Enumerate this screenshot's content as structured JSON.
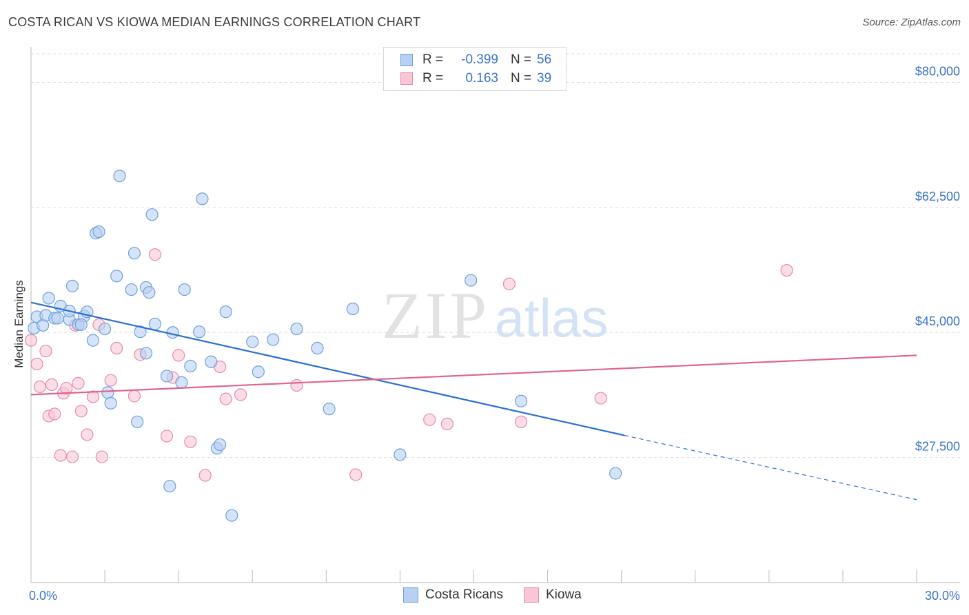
{
  "title": "COSTA RICAN VS KIOWA MEDIAN EARNINGS CORRELATION CHART",
  "source": "Source: ZipAtlas.com",
  "watermark": {
    "zip": "ZIP",
    "atlas": "atlas"
  },
  "legend": {
    "rows": [
      {
        "r_label": "R =",
        "r_value": "-0.399",
        "n_label": "N =",
        "n_value": "56"
      },
      {
        "r_label": "R =",
        "r_value": "0.163",
        "n_label": "N =",
        "n_value": "39"
      }
    ]
  },
  "colors": {
    "blue_fill": "#b8d1f3",
    "blue_stroke": "#6f9fdc",
    "blue_line": "#2a6fd4",
    "pink_fill": "#f9c6d6",
    "pink_stroke": "#e88aa7",
    "pink_line": "#e0648e",
    "axis_label": "#3b73c8",
    "grid": "#dddddd"
  },
  "chart_data": {
    "type": "scatter",
    "title": "COSTA RICAN VS KIOWA MEDIAN EARNINGS CORRELATION CHART",
    "xlabel": "",
    "ylabel": "Median Earnings",
    "xlim": [
      0,
      30
    ],
    "ylim": [
      10000,
      84000
    ],
    "x_tick_labels": [
      "0.0%",
      "30.0%"
    ],
    "y_ticks": [
      27500,
      45000,
      62500,
      80000
    ],
    "y_tick_labels": [
      "$27,500",
      "$45,000",
      "$62,500",
      "$80,000"
    ],
    "grid": true,
    "series": [
      {
        "name": "Costa Ricans",
        "r": -0.399,
        "n": 56,
        "trend": {
          "x0": 0,
          "y0": 49200,
          "x1": 20.1,
          "y1": 30600,
          "dash_x1": 30,
          "dash_y1": 21600
        },
        "points": [
          [
            0.1,
            45600
          ],
          [
            0.2,
            47200
          ],
          [
            0.4,
            46000
          ],
          [
            0.5,
            47400
          ],
          [
            0.6,
            49800
          ],
          [
            0.8,
            47000
          ],
          [
            1.0,
            48700
          ],
          [
            1.3,
            46800
          ],
          [
            1.3,
            48000
          ],
          [
            1.4,
            51500
          ],
          [
            1.6,
            46100
          ],
          [
            1.8,
            47300
          ],
          [
            1.9,
            47900
          ],
          [
            2.1,
            43900
          ],
          [
            2.2,
            58900
          ],
          [
            2.3,
            59100
          ],
          [
            2.5,
            45500
          ],
          [
            2.6,
            36600
          ],
          [
            2.7,
            35100
          ],
          [
            2.9,
            52900
          ],
          [
            3.0,
            66900
          ],
          [
            3.4,
            51000
          ],
          [
            3.5,
            56100
          ],
          [
            3.6,
            32500
          ],
          [
            3.7,
            45100
          ],
          [
            3.9,
            42100
          ],
          [
            3.9,
            51300
          ],
          [
            4.0,
            50600
          ],
          [
            4.1,
            61500
          ],
          [
            4.2,
            46200
          ],
          [
            4.6,
            38900
          ],
          [
            4.7,
            23500
          ],
          [
            4.8,
            45000
          ],
          [
            5.1,
            38000
          ],
          [
            5.2,
            51000
          ],
          [
            5.4,
            40300
          ],
          [
            5.7,
            45100
          ],
          [
            5.8,
            63700
          ],
          [
            6.1,
            40900
          ],
          [
            6.3,
            28800
          ],
          [
            6.4,
            29300
          ],
          [
            6.6,
            47900
          ],
          [
            6.8,
            19400
          ],
          [
            7.5,
            43700
          ],
          [
            7.7,
            39500
          ],
          [
            8.2,
            44000
          ],
          [
            9.0,
            45500
          ],
          [
            9.7,
            42800
          ],
          [
            10.1,
            34300
          ],
          [
            10.9,
            48300
          ],
          [
            12.5,
            27900
          ],
          [
            14.9,
            52300
          ],
          [
            16.6,
            35400
          ],
          [
            19.8,
            25300
          ],
          [
            1.7,
            46100
          ],
          [
            0.9,
            47000
          ]
        ]
      },
      {
        "name": "Kiowa",
        "r": 0.163,
        "n": 39,
        "trend": {
          "x0": 0,
          "y0": 36300,
          "x1": 30,
          "y1": 41800
        },
        "points": [
          [
            0.0,
            43900
          ],
          [
            0.2,
            40600
          ],
          [
            0.3,
            37400
          ],
          [
            0.5,
            42400
          ],
          [
            0.6,
            33300
          ],
          [
            0.7,
            37700
          ],
          [
            0.8,
            33600
          ],
          [
            1.0,
            27800
          ],
          [
            1.1,
            36500
          ],
          [
            1.2,
            37200
          ],
          [
            1.4,
            27600
          ],
          [
            1.5,
            46000
          ],
          [
            1.6,
            37900
          ],
          [
            1.7,
            34000
          ],
          [
            1.9,
            30700
          ],
          [
            2.1,
            36000
          ],
          [
            2.3,
            46100
          ],
          [
            2.4,
            27600
          ],
          [
            2.7,
            38300
          ],
          [
            2.9,
            42800
          ],
          [
            3.5,
            36100
          ],
          [
            3.7,
            41900
          ],
          [
            4.2,
            55900
          ],
          [
            4.6,
            30500
          ],
          [
            4.8,
            38700
          ],
          [
            5.0,
            41800
          ],
          [
            5.4,
            29700
          ],
          [
            5.9,
            25000
          ],
          [
            6.4,
            40200
          ],
          [
            6.6,
            35700
          ],
          [
            7.1,
            36300
          ],
          [
            9.0,
            37600
          ],
          [
            11.0,
            25100
          ],
          [
            13.5,
            32800
          ],
          [
            14.1,
            32200
          ],
          [
            16.2,
            51800
          ],
          [
            16.6,
            32500
          ],
          [
            19.3,
            35800
          ],
          [
            25.6,
            53700
          ]
        ]
      }
    ]
  },
  "bottom_legend": [
    {
      "label": "Costa Ricans"
    },
    {
      "label": "Kiowa"
    }
  ]
}
